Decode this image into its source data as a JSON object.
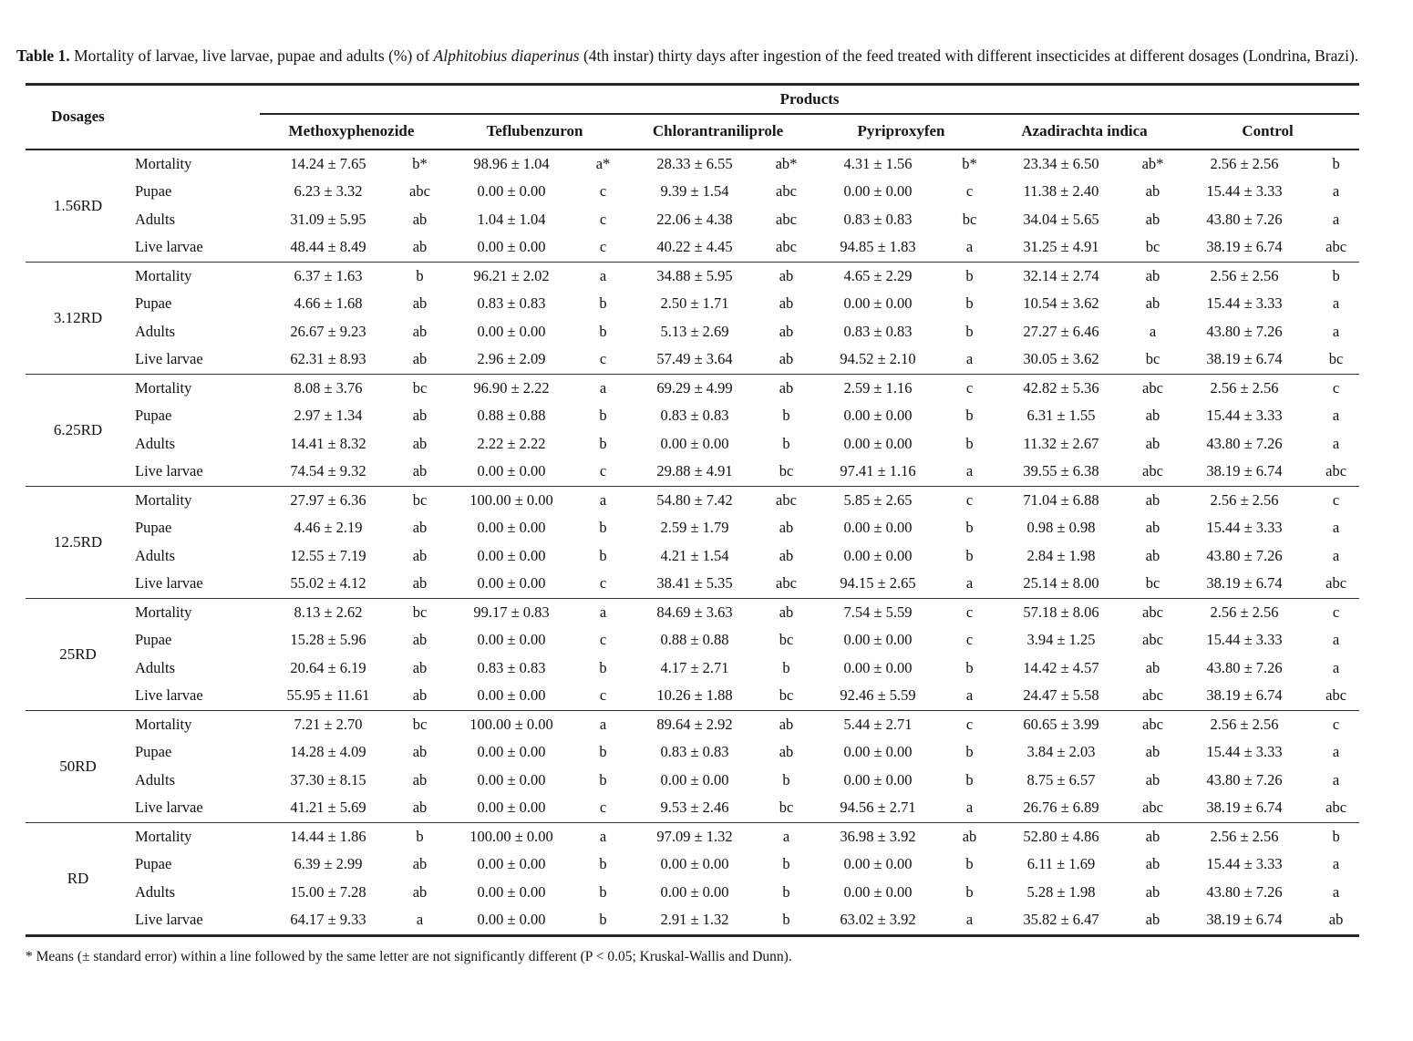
{
  "colors": {
    "text": "#111111",
    "rules": "#262626",
    "background": "#ffffff"
  },
  "title": {
    "label": "Table 1.",
    "before_italic": " Mortality of larvae, live larvae, pupae and adults (%) of ",
    "italic": "Alphitobius diaperinus",
    "after_italic": " (4th instar) thirty days after ingestion of the feed treated with different insecticides at different dosages (Londrina, Brazi)."
  },
  "table": {
    "dosages_header": "Dosages",
    "products_header": "Products",
    "product_columns": [
      "Methoxyphenozide",
      "Teflubenzuron",
      "Chlorantraniliprole",
      "Pyriproxyfen",
      "Azadirachta indica",
      "Control"
    ],
    "row_labels": [
      "Mortality",
      "Pupae",
      "Adults",
      "Live larvae"
    ],
    "blocks": [
      {
        "dosage": "1.56RD",
        "rows": [
          {
            "label": "Mortality",
            "cells": [
              [
                "14.24 ± 7.65",
                "b*"
              ],
              [
                "98.96 ± 1.04",
                "a*"
              ],
              [
                "28.33 ± 6.55",
                "ab*"
              ],
              [
                "4.31 ± 1.56",
                "b*"
              ],
              [
                "23.34 ± 6.50",
                "ab*"
              ],
              [
                "2.56 ± 2.56",
                "b"
              ]
            ]
          },
          {
            "label": "Pupae",
            "cells": [
              [
                "6.23 ± 3.32",
                "abc"
              ],
              [
                "0.00 ± 0.00",
                "c"
              ],
              [
                "9.39 ± 1.54",
                "abc"
              ],
              [
                "0.00 ± 0.00",
                "c"
              ],
              [
                "11.38 ± 2.40",
                "ab"
              ],
              [
                "15.44 ± 3.33",
                "a"
              ]
            ]
          },
          {
            "label": "Adults",
            "cells": [
              [
                "31.09 ± 5.95",
                "ab"
              ],
              [
                "1.04 ± 1.04",
                "c"
              ],
              [
                "22.06 ± 4.38",
                "abc"
              ],
              [
                "0.83 ± 0.83",
                "bc"
              ],
              [
                "34.04 ± 5.65",
                "ab"
              ],
              [
                "43.80 ± 7.26",
                "a"
              ]
            ]
          },
          {
            "label": "Live larvae",
            "cells": [
              [
                "48.44 ± 8.49",
                "ab"
              ],
              [
                "0.00 ± 0.00",
                "c"
              ],
              [
                "40.22 ± 4.45",
                "abc"
              ],
              [
                "94.85 ± 1.83",
                "a"
              ],
              [
                "31.25 ± 4.91",
                "bc"
              ],
              [
                "38.19 ± 6.74",
                "abc"
              ]
            ]
          }
        ]
      },
      {
        "dosage": "3.12RD",
        "rows": [
          {
            "label": "Mortality",
            "cells": [
              [
                "6.37 ± 1.63",
                "b"
              ],
              [
                "96.21 ± 2.02",
                "a"
              ],
              [
                "34.88 ± 5.95",
                "ab"
              ],
              [
                "4.65 ± 2.29",
                "b"
              ],
              [
                "32.14 ± 2.74",
                "ab"
              ],
              [
                "2.56 ± 2.56",
                "b"
              ]
            ]
          },
          {
            "label": "Pupae",
            "cells": [
              [
                "4.66 ± 1.68",
                "ab"
              ],
              [
                "0.83 ± 0.83",
                "b"
              ],
              [
                "2.50 ± 1.71",
                "ab"
              ],
              [
                "0.00 ± 0.00",
                "b"
              ],
              [
                "10.54 ± 3.62",
                "ab"
              ],
              [
                "15.44 ± 3.33",
                "a"
              ]
            ]
          },
          {
            "label": "Adults",
            "cells": [
              [
                "26.67 ± 9.23",
                "ab"
              ],
              [
                "0.00 ± 0.00",
                "b"
              ],
              [
                "5.13 ± 2.69",
                "ab"
              ],
              [
                "0.83 ± 0.83",
                "b"
              ],
              [
                "27.27 ± 6.46",
                "a"
              ],
              [
                "43.80 ± 7.26",
                "a"
              ]
            ]
          },
          {
            "label": "Live larvae",
            "cells": [
              [
                "62.31 ± 8.93",
                "ab"
              ],
              [
                "2.96 ± 2.09",
                "c"
              ],
              [
                "57.49 ± 3.64",
                "ab"
              ],
              [
                "94.52 ± 2.10",
                "a"
              ],
              [
                "30.05 ± 3.62",
                "bc"
              ],
              [
                "38.19 ± 6.74",
                "bc"
              ]
            ]
          }
        ]
      },
      {
        "dosage": "6.25RD",
        "rows": [
          {
            "label": "Mortality",
            "cells": [
              [
                "8.08 ± 3.76",
                "bc"
              ],
              [
                "96.90 ± 2.22",
                "a"
              ],
              [
                "69.29 ± 4.99",
                "ab"
              ],
              [
                "2.59 ± 1.16",
                "c"
              ],
              [
                "42.82 ± 5.36",
                "abc"
              ],
              [
                "2.56 ± 2.56",
                "c"
              ]
            ]
          },
          {
            "label": "Pupae",
            "cells": [
              [
                "2.97 ± 1.34",
                "ab"
              ],
              [
                "0.88 ± 0.88",
                "b"
              ],
              [
                "0.83 ± 0.83",
                "b"
              ],
              [
                "0.00 ± 0.00",
                "b"
              ],
              [
                "6.31 ± 1.55",
                "ab"
              ],
              [
                "15.44 ± 3.33",
                "a"
              ]
            ]
          },
          {
            "label": "Adults",
            "cells": [
              [
                "14.41 ± 8.32",
                "ab"
              ],
              [
                "2.22 ± 2.22",
                "b"
              ],
              [
                "0.00 ± 0.00",
                "b"
              ],
              [
                "0.00 ± 0.00",
                "b"
              ],
              [
                "11.32 ± 2.67",
                "ab"
              ],
              [
                "43.80 ± 7.26",
                "a"
              ]
            ]
          },
          {
            "label": "Live larvae",
            "cells": [
              [
                "74.54 ± 9.32",
                "ab"
              ],
              [
                "0.00 ± 0.00",
                "c"
              ],
              [
                "29.88 ± 4.91",
                "bc"
              ],
              [
                "97.41 ± 1.16",
                "a"
              ],
              [
                "39.55 ± 6.38",
                "abc"
              ],
              [
                "38.19 ± 6.74",
                "abc"
              ]
            ]
          }
        ]
      },
      {
        "dosage": "12.5RD",
        "rows": [
          {
            "label": "Mortality",
            "cells": [
              [
                "27.97 ± 6.36",
                "bc"
              ],
              [
                "100.00 ± 0.00",
                "a"
              ],
              [
                "54.80 ± 7.42",
                "abc"
              ],
              [
                "5.85 ± 2.65",
                "c"
              ],
              [
                "71.04 ± 6.88",
                "ab"
              ],
              [
                "2.56 ± 2.56",
                "c"
              ]
            ]
          },
          {
            "label": "Pupae",
            "cells": [
              [
                "4.46 ± 2.19",
                "ab"
              ],
              [
                "0.00 ± 0.00",
                "b"
              ],
              [
                "2.59 ± 1.79",
                "ab"
              ],
              [
                "0.00 ± 0.00",
                "b"
              ],
              [
                "0.98 ± 0.98",
                "ab"
              ],
              [
                "15.44 ± 3.33",
                "a"
              ]
            ]
          },
          {
            "label": "Adults",
            "cells": [
              [
                "12.55 ± 7.19",
                "ab"
              ],
              [
                "0.00 ± 0.00",
                "b"
              ],
              [
                "4.21 ± 1.54",
                "ab"
              ],
              [
                "0.00 ± 0.00",
                "b"
              ],
              [
                "2.84 ± 1.98",
                "ab"
              ],
              [
                "43.80 ± 7.26",
                "a"
              ]
            ]
          },
          {
            "label": "Live larvae",
            "cells": [
              [
                "55.02 ± 4.12",
                "ab"
              ],
              [
                "0.00 ± 0.00",
                "c"
              ],
              [
                "38.41 ± 5.35",
                "abc"
              ],
              [
                "94.15 ± 2.65",
                "a"
              ],
              [
                "25.14 ± 8.00",
                "bc"
              ],
              [
                "38.19 ± 6.74",
                "abc"
              ]
            ]
          }
        ]
      },
      {
        "dosage": "25RD",
        "rows": [
          {
            "label": "Mortality",
            "cells": [
              [
                "8.13 ± 2.62",
                "bc"
              ],
              [
                "99.17 ± 0.83",
                "a"
              ],
              [
                "84.69 ± 3.63",
                "ab"
              ],
              [
                "7.54 ± 5.59",
                "c"
              ],
              [
                "57.18 ± 8.06",
                "abc"
              ],
              [
                "2.56 ± 2.56",
                "c"
              ]
            ]
          },
          {
            "label": "Pupae",
            "cells": [
              [
                "15.28 ± 5.96",
                "ab"
              ],
              [
                "0.00 ± 0.00",
                "c"
              ],
              [
                "0.88 ± 0.88",
                "bc"
              ],
              [
                "0.00 ± 0.00",
                "c"
              ],
              [
                "3.94 ± 1.25",
                "abc"
              ],
              [
                "15.44 ± 3.33",
                "a"
              ]
            ]
          },
          {
            "label": "Adults",
            "cells": [
              [
                "20.64 ± 6.19",
                "ab"
              ],
              [
                "0.83 ± 0.83",
                "b"
              ],
              [
                "4.17 ± 2.71",
                "b"
              ],
              [
                "0.00 ± 0.00",
                "b"
              ],
              [
                "14.42 ± 4.57",
                "ab"
              ],
              [
                "43.80 ± 7.26",
                "a"
              ]
            ]
          },
          {
            "label": "Live larvae",
            "cells": [
              [
                "55.95 ± 11.61",
                "ab"
              ],
              [
                "0.00 ± 0.00",
                "c"
              ],
              [
                "10.26 ± 1.88",
                "bc"
              ],
              [
                "92.46 ± 5.59",
                "a"
              ],
              [
                "24.47 ± 5.58",
                "abc"
              ],
              [
                "38.19 ± 6.74",
                "abc"
              ]
            ]
          }
        ]
      },
      {
        "dosage": "50RD",
        "rows": [
          {
            "label": "Mortality",
            "cells": [
              [
                "7.21 ± 2.70",
                "bc"
              ],
              [
                "100.00 ± 0.00",
                "a"
              ],
              [
                "89.64 ± 2.92",
                "ab"
              ],
              [
                "5.44 ± 2.71",
                "c"
              ],
              [
                "60.65 ± 3.99",
                "abc"
              ],
              [
                "2.56 ± 2.56",
                "c"
              ]
            ]
          },
          {
            "label": "Pupae",
            "cells": [
              [
                "14.28 ± 4.09",
                "ab"
              ],
              [
                "0.00 ± 0.00",
                "b"
              ],
              [
                "0.83 ± 0.83",
                "ab"
              ],
              [
                "0.00 ± 0.00",
                "b"
              ],
              [
                "3.84 ± 2.03",
                "ab"
              ],
              [
                "15.44 ± 3.33",
                "a"
              ]
            ]
          },
          {
            "label": "Adults",
            "cells": [
              [
                "37.30 ± 8.15",
                "ab"
              ],
              [
                "0.00 ± 0.00",
                "b"
              ],
              [
                "0.00 ± 0.00",
                "b"
              ],
              [
                "0.00 ± 0.00",
                "b"
              ],
              [
                "8.75 ± 6.57",
                "ab"
              ],
              [
                "43.80 ± 7.26",
                "a"
              ]
            ]
          },
          {
            "label": "Live larvae",
            "cells": [
              [
                "41.21 ± 5.69",
                "ab"
              ],
              [
                "0.00 ± 0.00",
                "c"
              ],
              [
                "9.53 ± 2.46",
                "bc"
              ],
              [
                "94.56 ± 2.71",
                "a"
              ],
              [
                "26.76 ± 6.89",
                "abc"
              ],
              [
                "38.19 ± 6.74",
                "abc"
              ]
            ]
          }
        ]
      },
      {
        "dosage": "RD",
        "rows": [
          {
            "label": "Mortality",
            "cells": [
              [
                "14.44 ± 1.86",
                "b"
              ],
              [
                "100.00 ± 0.00",
                "a"
              ],
              [
                "97.09 ± 1.32",
                "a"
              ],
              [
                "36.98 ± 3.92",
                "ab"
              ],
              [
                "52.80 ± 4.86",
                "ab"
              ],
              [
                "2.56 ± 2.56",
                "b"
              ]
            ]
          },
          {
            "label": "Pupae",
            "cells": [
              [
                "6.39 ± 2.99",
                "ab"
              ],
              [
                "0.00 ± 0.00",
                "b"
              ],
              [
                "0.00 ± 0.00",
                "b"
              ],
              [
                "0.00 ± 0.00",
                "b"
              ],
              [
                "6.11 ± 1.69",
                "ab"
              ],
              [
                "15.44 ± 3.33",
                "a"
              ]
            ]
          },
          {
            "label": "Adults",
            "cells": [
              [
                "15.00 ± 7.28",
                "ab"
              ],
              [
                "0.00 ± 0.00",
                "b"
              ],
              [
                "0.00 ± 0.00",
                "b"
              ],
              [
                "0.00 ± 0.00",
                "b"
              ],
              [
                "5.28 ± 1.98",
                "ab"
              ],
              [
                "43.80 ± 7.26",
                "a"
              ]
            ]
          },
          {
            "label": "Live larvae",
            "cells": [
              [
                "64.17 ± 9.33",
                "a"
              ],
              [
                "0.00 ± 0.00",
                "b"
              ],
              [
                "2.91 ± 1.32",
                "b"
              ],
              [
                "63.02 ± 3.92",
                "a"
              ],
              [
                "35.82 ± 6.47",
                "ab"
              ],
              [
                "38.19 ± 6.74",
                "ab"
              ]
            ]
          }
        ]
      }
    ]
  },
  "footnote": "* Means (± standard error) within a line followed by the same letter are not significantly different (P < 0.05; Kruskal-Wallis and Dunn)."
}
